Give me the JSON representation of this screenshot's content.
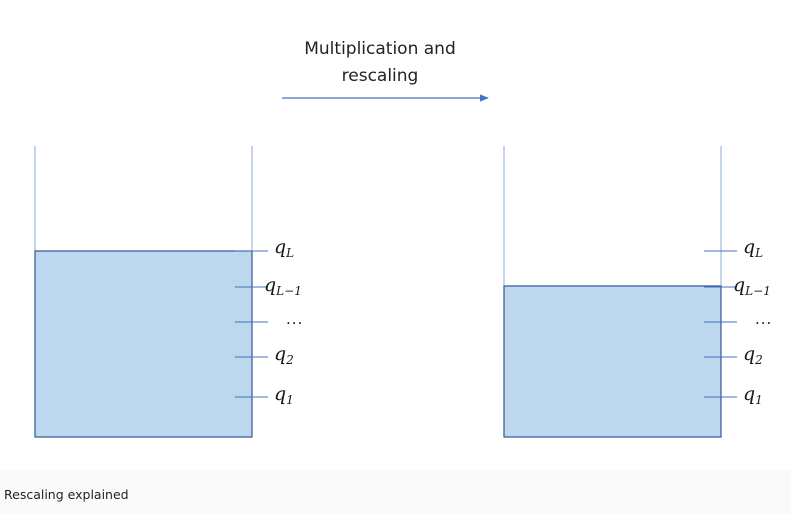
{
  "title": {
    "line1": "Multiplication and",
    "line2": "rescaling"
  },
  "caption": "Rescaling explained",
  "colors": {
    "fill": "#bdd7ee",
    "edge": "#2f5597",
    "line": "#4472c4"
  },
  "panels": [
    {
      "labels": [
        {
          "base": "q",
          "sub": "L"
        },
        {
          "base": "q",
          "sub": "L−1"
        },
        {
          "base": "q",
          "sub": "2"
        },
        {
          "base": "q",
          "sub": "1"
        }
      ],
      "ellipsis": "..."
    },
    {
      "labels": [
        {
          "base": "q",
          "sub": "L"
        },
        {
          "base": "q",
          "sub": "L−1"
        },
        {
          "base": "q",
          "sub": "2"
        },
        {
          "base": "q",
          "sub": "1"
        }
      ],
      "ellipsis": "..."
    }
  ]
}
